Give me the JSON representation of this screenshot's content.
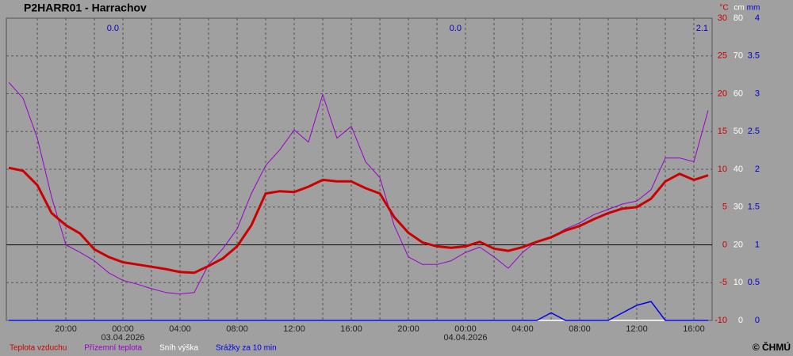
{
  "chart_data": {
    "type": "line",
    "title": "P2HARR01 - Harrachov",
    "copyright": "© ČHMÚ",
    "units": [
      {
        "label": "°C",
        "color": "#cc0000"
      },
      {
        "label": "cm",
        "color": "#ffffff"
      },
      {
        "label": "mm",
        "color": "#0000cc"
      }
    ],
    "daily_precip_totals": [
      "0.0",
      "0.0",
      "2.1"
    ],
    "x": [
      -8,
      -7,
      -6,
      -5,
      -4,
      -3,
      -2,
      -1,
      0,
      1,
      2,
      3,
      4,
      5,
      6,
      7,
      8,
      9,
      10,
      11,
      12,
      13,
      14,
      15,
      16,
      17,
      18,
      19,
      20,
      21,
      22,
      23,
      24,
      25,
      26,
      27,
      28,
      29,
      30,
      31,
      32,
      33,
      34,
      35,
      36,
      37,
      38,
      39,
      40,
      41
    ],
    "xlim": [
      -8.17,
      41.28
    ],
    "xticks": [
      {
        "value": -4,
        "label": "20:00"
      },
      {
        "value": 0,
        "label": "00:00"
      },
      {
        "value": 4,
        "label": "04:00"
      },
      {
        "value": 8,
        "label": "08:00"
      },
      {
        "value": 12,
        "label": "12:00"
      },
      {
        "value": 16,
        "label": "16:00"
      },
      {
        "value": 20,
        "label": "20:00"
      },
      {
        "value": 24,
        "label": "00:00"
      },
      {
        "value": 28,
        "label": "04:00"
      },
      {
        "value": 32,
        "label": "08:00"
      },
      {
        "value": 36,
        "label": "12:00"
      },
      {
        "value": 40,
        "label": "16:00"
      }
    ],
    "minor_xticks": [
      -6,
      -2,
      2,
      6,
      10,
      14,
      18,
      22,
      26,
      30,
      34,
      38
    ],
    "date_labels": [
      {
        "value": 0,
        "label": "03.04.2026"
      },
      {
        "value": 24,
        "label": "04.04.2026"
      }
    ],
    "ylim": [
      -10,
      30
    ],
    "yticks": [
      -10,
      -5,
      0,
      5,
      10,
      15,
      20,
      25,
      30
    ],
    "y2lim": [
      0,
      80
    ],
    "y2ticks": [
      0,
      10,
      20,
      30,
      40,
      50,
      60,
      70,
      80
    ],
    "y3lim": [
      0,
      4
    ],
    "y3ticks": [
      0,
      0.5,
      1,
      1.5,
      2,
      2.5,
      3,
      3.5,
      4
    ],
    "grid": true,
    "series": [
      {
        "name": "Teplota vzduchu",
        "color": "#cc0000",
        "axis": "y",
        "values": [
          10.2,
          9.8,
          7.9,
          4.2,
          2.6,
          1.5,
          -0.6,
          -1.6,
          -2.3,
          -2.6,
          -2.9,
          -3.2,
          -3.6,
          -3.7,
          -2.8,
          -1.8,
          -0.2,
          2.6,
          6.8,
          7.1,
          7.0,
          7.7,
          8.6,
          8.4,
          8.4,
          7.5,
          6.8,
          3.7,
          1.6,
          0.3,
          -0.2,
          -0.4,
          -0.2,
          0.4,
          -0.5,
          -0.8,
          -0.3,
          0.4,
          1.0,
          1.9,
          2.5,
          3.4,
          4.2,
          4.8,
          5.0,
          6.1,
          8.4,
          9.4,
          8.6,
          9.2
        ]
      },
      {
        "name": "Přízemní teplota",
        "color": "#9900cc",
        "axis": "y",
        "values": [
          21.5,
          19.4,
          14.1,
          6.3,
          0,
          -1.0,
          -2.1,
          -3.7,
          -4.7,
          -5.2,
          -5.8,
          -6.3,
          -6.5,
          -6.3,
          -2.6,
          -0.5,
          2.1,
          6.8,
          10.5,
          12.6,
          15.2,
          13.6,
          19.9,
          14.1,
          15.7,
          11.0,
          8.9,
          2.6,
          -1.6,
          -2.6,
          -2.6,
          -2.1,
          -1.0,
          -0.3,
          -1.6,
          -3.1,
          -1.0,
          0.5,
          1.0,
          2.1,
          2.9,
          4.0,
          4.7,
          5.4,
          5.8,
          7.3,
          11.5,
          11.5,
          11.0,
          17.8
        ]
      },
      {
        "name": "Sníh výška",
        "color": "#ffffff",
        "axis": "y2",
        "values": [
          0,
          0,
          0,
          0,
          0,
          0,
          0,
          0,
          0,
          0,
          0,
          0,
          0,
          0,
          0,
          0,
          0,
          0,
          0,
          0,
          0,
          0,
          0,
          0,
          0,
          0,
          0,
          0,
          0,
          0,
          0,
          0,
          0,
          0,
          0,
          0,
          0,
          0,
          0,
          0,
          0,
          0,
          0,
          0,
          0,
          0,
          0,
          0,
          0,
          0
        ]
      },
      {
        "name": "Srážky za 10 min",
        "color": "#0000ee",
        "axis": "y3",
        "values": [
          0,
          0,
          0,
          0,
          0,
          0,
          0,
          0,
          0,
          0,
          0,
          0,
          0,
          0,
          0,
          0,
          0,
          0,
          0,
          0,
          0,
          0,
          0,
          0,
          0,
          0,
          0,
          0,
          0,
          0,
          0,
          0,
          0,
          0,
          0,
          0,
          0,
          0,
          0.1,
          0,
          0,
          0,
          0,
          0.1,
          0.2,
          0.25,
          0,
          0,
          0,
          0
        ]
      }
    ]
  }
}
